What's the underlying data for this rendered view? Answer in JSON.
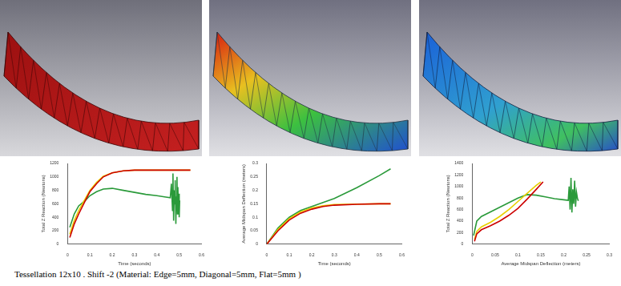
{
  "caption": "Tessellation 12x10 . Shift -2 (Material: Edge=5mm, Diagonal=5mm, Flat=5mm )",
  "chart_data": [
    {
      "type": "line",
      "x_label": "Time (seconds)",
      "y_label": "Total Z Reaction (Newtons)",
      "xlim": [
        0,
        0.6
      ],
      "xticks": [
        0,
        0.1,
        0.2,
        0.3,
        0.4,
        0.5,
        0.6
      ],
      "ylim": [
        0,
        1200
      ],
      "yticks": [
        0,
        200,
        400,
        600,
        800,
        1000,
        1200
      ],
      "grid": false,
      "series": [
        {
          "color": "#cc0000",
          "x": [
            0.01,
            0.03,
            0.05,
            0.08,
            0.1,
            0.13,
            0.16,
            0.2,
            0.25,
            0.3,
            0.4,
            0.5,
            0.55
          ],
          "values": [
            100,
            300,
            450,
            650,
            780,
            900,
            1000,
            1060,
            1090,
            1100,
            1100,
            1100,
            1100
          ]
        },
        {
          "color": "#e8d000",
          "x": [
            0.01,
            0.03,
            0.05,
            0.08,
            0.1,
            0.13,
            0.16,
            0.2,
            0.25,
            0.3,
            0.4,
            0.5,
            0.55
          ],
          "values": [
            150,
            350,
            500,
            680,
            800,
            920,
            1010,
            1060,
            1090,
            1100,
            1100,
            1100,
            1100
          ]
        },
        {
          "color": "#2a9a3a",
          "x": [
            0.01,
            0.03,
            0.05,
            0.08,
            0.1,
            0.13,
            0.16,
            0.2,
            0.25,
            0.3,
            0.35,
            0.4,
            0.44,
            0.46,
            0.465,
            0.47,
            0.472,
            0.475,
            0.478,
            0.48,
            0.482,
            0.485,
            0.487,
            0.49,
            0.492,
            0.494,
            0.496,
            0.498,
            0.5,
            0.502
          ],
          "values": [
            250,
            450,
            570,
            650,
            720,
            780,
            820,
            830,
            800,
            770,
            740,
            720,
            700,
            690,
            900,
            500,
            1050,
            350,
            800,
            600,
            950,
            300,
            700,
            1000,
            450,
            850,
            550,
            750,
            400,
            650
          ]
        }
      ]
    },
    {
      "type": "line",
      "x_label": "Time (seconds)",
      "y_label": "Average Midspan Deflection (meters)",
      "xlim": [
        0,
        0.6
      ],
      "xticks": [
        0,
        0.1,
        0.2,
        0.3,
        0.4,
        0.5,
        0.6
      ],
      "ylim": [
        0,
        0.3
      ],
      "yticks": [
        0,
        0.05,
        0.1,
        0.15,
        0.2,
        0.25,
        0.3
      ],
      "grid": false,
      "series": [
        {
          "color": "#cc0000",
          "x": [
            0,
            0.05,
            0.1,
            0.15,
            0.2,
            0.25,
            0.3,
            0.4,
            0.5,
            0.55
          ],
          "values": [
            0,
            0.05,
            0.09,
            0.115,
            0.13,
            0.14,
            0.145,
            0.148,
            0.15,
            0.15
          ]
        },
        {
          "color": "#e8d000",
          "x": [
            0,
            0.05,
            0.1,
            0.15,
            0.2,
            0.25,
            0.3,
            0.4,
            0.5,
            0.55
          ],
          "values": [
            0,
            0.055,
            0.095,
            0.12,
            0.135,
            0.143,
            0.147,
            0.149,
            0.15,
            0.15
          ]
        },
        {
          "color": "#2a9a3a",
          "x": [
            0,
            0.05,
            0.1,
            0.15,
            0.2,
            0.25,
            0.3,
            0.4,
            0.5,
            0.55
          ],
          "values": [
            0,
            0.06,
            0.1,
            0.125,
            0.14,
            0.155,
            0.17,
            0.21,
            0.255,
            0.28
          ]
        }
      ]
    },
    {
      "type": "line",
      "x_label": "Average Midspan Deflection (meters)",
      "y_label": "Total Z Reaction (Newtons)",
      "xlim": [
        0,
        0.3
      ],
      "xticks": [
        0,
        0.05,
        0.1,
        0.15,
        0.2,
        0.25,
        0.3
      ],
      "ylim": [
        0,
        1400
      ],
      "yticks": [
        0,
        200,
        400,
        600,
        800,
        1000,
        1200,
        1400
      ],
      "grid": false,
      "series": [
        {
          "color": "#cc0000",
          "x": [
            0.005,
            0.01,
            0.02,
            0.04,
            0.06,
            0.08,
            0.1,
            0.12,
            0.14,
            0.155
          ],
          "values": [
            50,
            180,
            250,
            320,
            400,
            500,
            620,
            780,
            950,
            1080
          ]
        },
        {
          "color": "#e8d000",
          "x": [
            0.005,
            0.01,
            0.02,
            0.04,
            0.06,
            0.08,
            0.1,
            0.12,
            0.14,
            0.15
          ],
          "values": [
            80,
            220,
            300,
            380,
            480,
            600,
            740,
            880,
            1020,
            1080
          ]
        },
        {
          "color": "#2a9a3a",
          "x": [
            0.003,
            0.01,
            0.02,
            0.04,
            0.06,
            0.08,
            0.1,
            0.12,
            0.14,
            0.16,
            0.18,
            0.2,
            0.21,
            0.212,
            0.214,
            0.216,
            0.218,
            0.22,
            0.222,
            0.224,
            0.226,
            0.228,
            0.23,
            0.232
          ],
          "values": [
            150,
            400,
            480,
            560,
            640,
            720,
            800,
            860,
            850,
            820,
            790,
            770,
            760,
            1000,
            600,
            1150,
            550,
            950,
            700,
            1100,
            650,
            900,
            800,
            750
          ]
        }
      ]
    }
  ]
}
